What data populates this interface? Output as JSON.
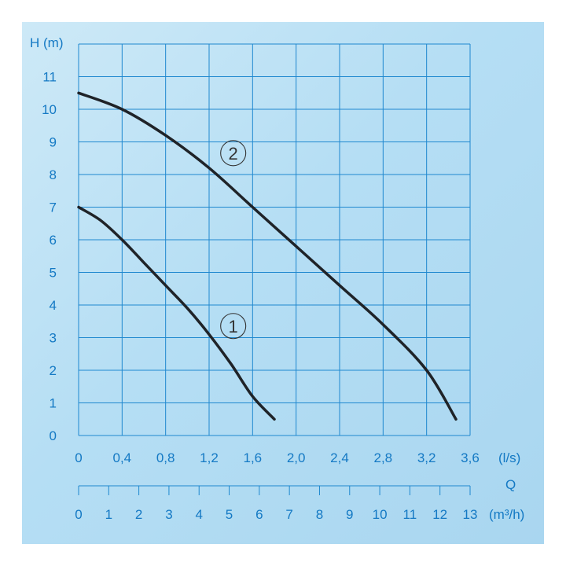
{
  "chart_data": {
    "type": "line",
    "ylabel": "H (m)",
    "xlabel_top": "(l/s)",
    "xlabel_bottom": "(m³/h)",
    "xlabel_q": "Q",
    "ylim": [
      0,
      12
    ],
    "xlim": [
      0,
      3.6
    ],
    "x_secondary_lim": [
      0,
      13
    ],
    "y_ticks": [
      "0",
      "1",
      "2",
      "3",
      "4",
      "5",
      "6",
      "7",
      "8",
      "9",
      "10",
      "11"
    ],
    "x_ticks_top": [
      "0",
      "0,4",
      "0,8",
      "1,2",
      "1,6",
      "2,0",
      "2,4",
      "2,8",
      "3,2",
      "3,6"
    ],
    "x_ticks_bottom": [
      "0",
      "1",
      "2",
      "3",
      "4",
      "5",
      "6",
      "7",
      "8",
      "9",
      "10",
      "11",
      "12",
      "13"
    ],
    "grid": true,
    "series": [
      {
        "name": "1",
        "x": [
          0,
          0.2,
          0.4,
          0.6,
          0.8,
          1.0,
          1.2,
          1.4,
          1.6,
          1.8
        ],
        "y": [
          7.0,
          6.6,
          6.0,
          5.3,
          4.6,
          3.9,
          3.1,
          2.2,
          1.2,
          0.5
        ]
      },
      {
        "name": "2",
        "x": [
          0,
          0.4,
          0.8,
          1.2,
          1.6,
          2.0,
          2.4,
          2.8,
          3.2,
          3.47
        ],
        "y": [
          10.5,
          10.0,
          9.2,
          8.2,
          7.0,
          5.8,
          4.6,
          3.4,
          2.0,
          0.5
        ]
      }
    ],
    "markers": [
      {
        "series": "1",
        "label": "1",
        "x": 1.4,
        "y": 3.5
      },
      {
        "series": "2",
        "label": "2",
        "x": 1.4,
        "y": 8.8
      }
    ],
    "colors": {
      "background": "#b8e0f5",
      "grid": "#1f88cf",
      "text": "#1479c4",
      "curve": "#1f2328"
    }
  }
}
